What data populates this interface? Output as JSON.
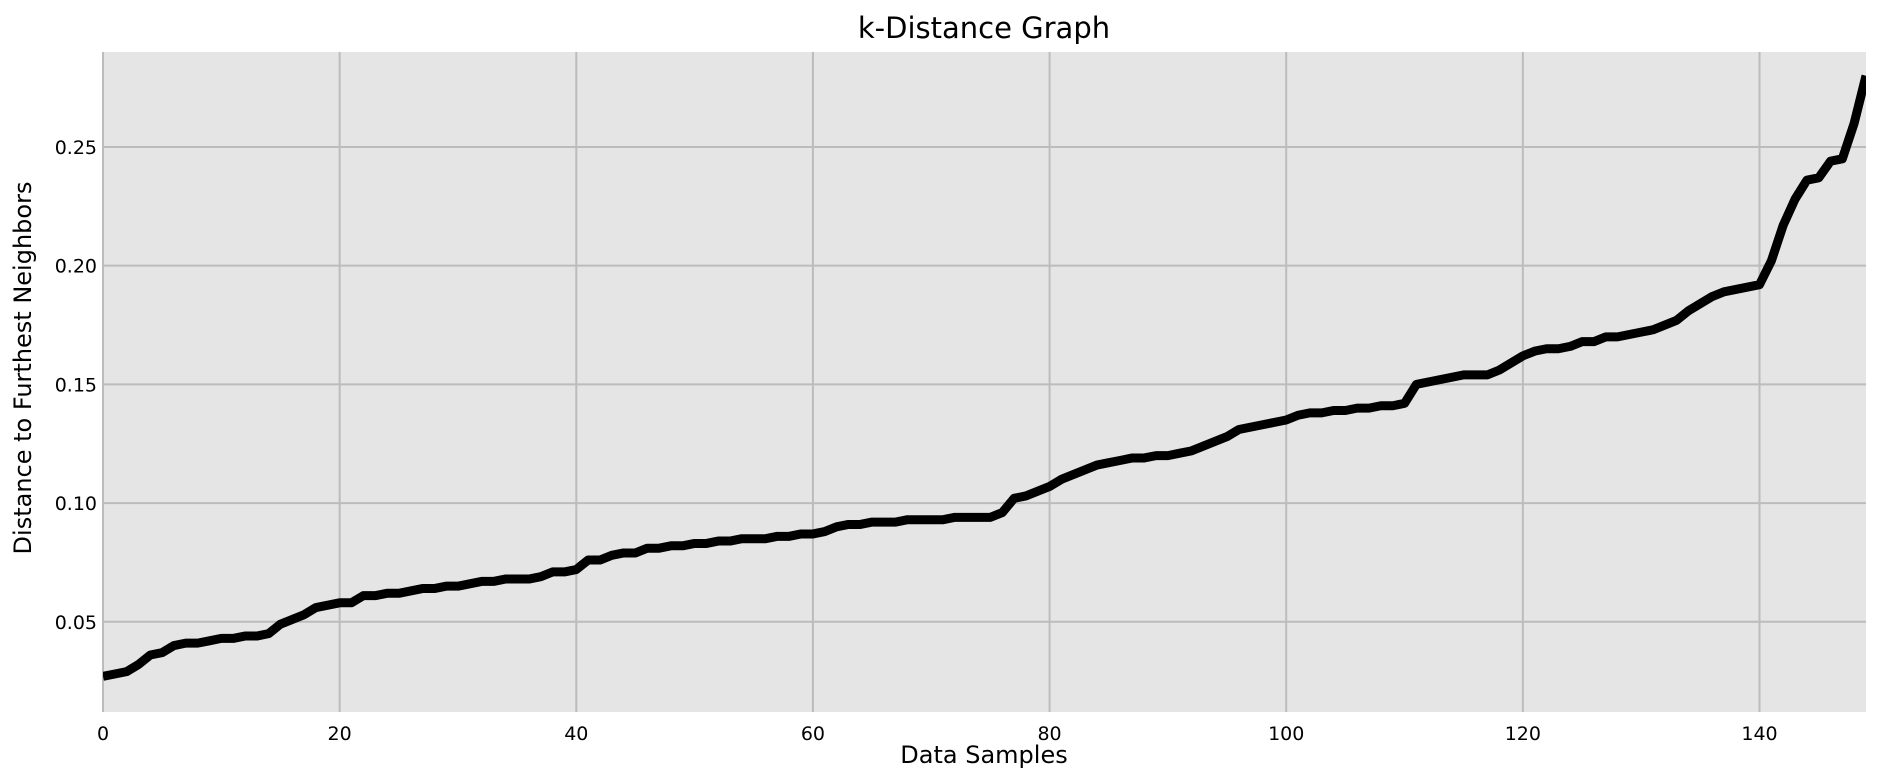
{
  "chart_data": {
    "type": "line",
    "title": "k-Distance Graph",
    "xlabel": "Data Samples",
    "ylabel": "Distance to Furthest Neighbors",
    "xlim": [
      0,
      149
    ],
    "ylim": [
      0.012,
      0.29
    ],
    "xticks": [
      0,
      20,
      40,
      60,
      80,
      100,
      120,
      140
    ],
    "yticks": [
      0.05,
      0.1,
      0.15,
      0.2,
      0.25
    ],
    "ytick_labels": [
      "0.05",
      "0.10",
      "0.15",
      "0.20",
      "0.25"
    ],
    "grid": true,
    "legend": "none",
    "colors": {
      "background": "#e5e5e5",
      "grid": "#bcbcbc",
      "line": "#000000",
      "page": "#ffffff"
    },
    "series": [
      {
        "y": [
          0.027,
          0.028,
          0.029,
          0.032,
          0.036,
          0.037,
          0.04,
          0.041,
          0.041,
          0.042,
          0.043,
          0.043,
          0.044,
          0.044,
          0.045,
          0.049,
          0.051,
          0.053,
          0.056,
          0.057,
          0.058,
          0.058,
          0.061,
          0.061,
          0.062,
          0.062,
          0.063,
          0.064,
          0.064,
          0.065,
          0.065,
          0.066,
          0.067,
          0.067,
          0.068,
          0.068,
          0.068,
          0.069,
          0.071,
          0.071,
          0.072,
          0.076,
          0.076,
          0.078,
          0.079,
          0.079,
          0.081,
          0.081,
          0.082,
          0.082,
          0.083,
          0.083,
          0.084,
          0.084,
          0.085,
          0.085,
          0.085,
          0.086,
          0.086,
          0.087,
          0.087,
          0.088,
          0.09,
          0.091,
          0.091,
          0.092,
          0.092,
          0.092,
          0.093,
          0.093,
          0.093,
          0.093,
          0.094,
          0.094,
          0.094,
          0.094,
          0.096,
          0.102,
          0.103,
          0.105,
          0.107,
          0.11,
          0.112,
          0.114,
          0.116,
          0.117,
          0.118,
          0.119,
          0.119,
          0.12,
          0.12,
          0.121,
          0.122,
          0.124,
          0.126,
          0.128,
          0.131,
          0.132,
          0.133,
          0.134,
          0.135,
          0.137,
          0.138,
          0.138,
          0.139,
          0.139,
          0.14,
          0.14,
          0.141,
          0.141,
          0.142,
          0.15,
          0.151,
          0.152,
          0.153,
          0.154,
          0.154,
          0.154,
          0.156,
          0.159,
          0.162,
          0.164,
          0.165,
          0.165,
          0.166,
          0.168,
          0.168,
          0.17,
          0.17,
          0.171,
          0.172,
          0.173,
          0.175,
          0.177,
          0.181,
          0.184,
          0.187,
          0.189,
          0.19,
          0.191,
          0.192,
          0.202,
          0.217,
          0.228,
          0.236,
          0.237,
          0.244,
          0.245,
          0.26,
          0.28
        ]
      }
    ]
  }
}
